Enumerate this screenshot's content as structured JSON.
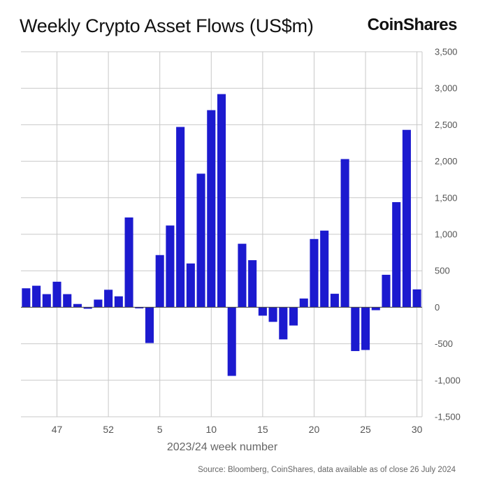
{
  "title": "Weekly Crypto Asset Flows (US$m)",
  "brand": "CoinShares",
  "source": "Source: Bloomberg, CoinShares, data available as of close 26 July 2024",
  "colors": {
    "bar": "#1c1acf",
    "grid": "#c8c8c8",
    "axis_text": "#555555"
  },
  "chart_data": {
    "type": "bar",
    "xlabel": "2023/24 week number",
    "ylabel": "",
    "ylim": [
      -1500,
      3500
    ],
    "yticks": [
      3500,
      3000,
      2500,
      2000,
      1500,
      1000,
      500,
      0,
      -500,
      -1000,
      -1500
    ],
    "ytick_labels": [
      "3,500",
      "3,000",
      "2,500",
      "2,000",
      "1,500",
      "1,000",
      "500",
      "0",
      "-500",
      "-1,000",
      "-1,500"
    ],
    "xtick_labels": [
      "47",
      "52",
      "5",
      "10",
      "15",
      "20",
      "25",
      "30"
    ],
    "grid": true,
    "categories": [
      "44",
      "45",
      "46",
      "47",
      "48",
      "49",
      "50",
      "51",
      "52",
      "1",
      "2",
      "3",
      "4",
      "5",
      "6",
      "7",
      "8",
      "9",
      "10",
      "11",
      "12",
      "13",
      "14",
      "15",
      "16",
      "17",
      "18",
      "19",
      "20",
      "21",
      "22",
      "23",
      "24",
      "25",
      "26",
      "27",
      "28",
      "29",
      "30"
    ],
    "values": [
      260,
      295,
      180,
      350,
      180,
      45,
      -20,
      105,
      240,
      150,
      1230,
      -15,
      -490,
      715,
      1120,
      2470,
      600,
      1830,
      2700,
      2920,
      -940,
      870,
      645,
      -115,
      -200,
      -440,
      -250,
      120,
      935,
      1050,
      185,
      2030,
      -600,
      -585,
      -40,
      445,
      1440,
      2430,
      245
    ]
  }
}
